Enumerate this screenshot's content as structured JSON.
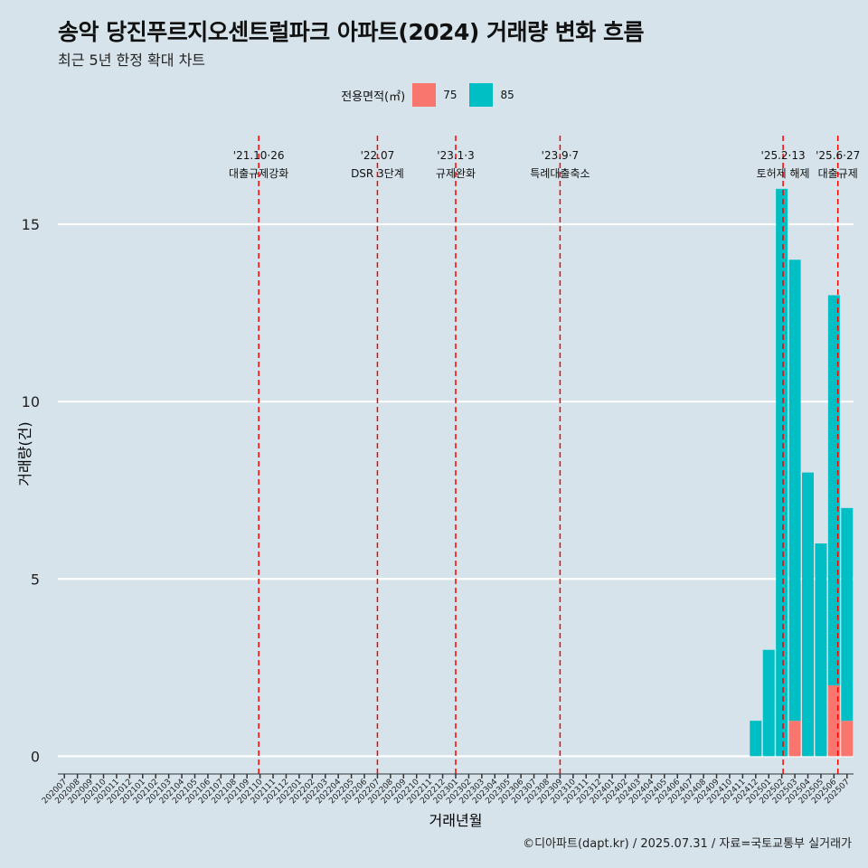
{
  "chart_data": {
    "type": "bar",
    "title": "송악 당진푸르지오센트럴파크 아파트(2024) 거래량 변화 흐름",
    "subtitle": "최근 5년 한정 확대 차트",
    "xlabel": "거래년월",
    "ylabel": "거래량(건)",
    "caption": "©디아파트(dapt.kr) / 2025.07.31 / 자료=국토교통부 실거래가",
    "legend": {
      "title": "전용면적(㎡)",
      "position": "top",
      "items": [
        {
          "label": "75",
          "color": "#f8766d"
        },
        {
          "label": "85",
          "color": "#00bfc4"
        }
      ]
    },
    "ylim": [
      -0.5,
      17.5
    ],
    "yticks": [
      0,
      5,
      10,
      15
    ],
    "grid": true,
    "categories": [
      "202007",
      "202008",
      "202009",
      "202010",
      "202011",
      "202012",
      "202101",
      "202102",
      "202103",
      "202104",
      "202105",
      "202106",
      "202107",
      "202108",
      "202109",
      "202110",
      "202111",
      "202112",
      "202201",
      "202202",
      "202203",
      "202204",
      "202205",
      "202206",
      "202207",
      "202208",
      "202209",
      "202210",
      "202211",
      "202212",
      "202301",
      "202302",
      "202303",
      "202304",
      "202305",
      "202306",
      "202307",
      "202308",
      "202309",
      "202310",
      "202311",
      "202312",
      "202401",
      "202402",
      "202403",
      "202404",
      "202405",
      "202406",
      "202407",
      "202408",
      "202409",
      "202410",
      "202411",
      "202412",
      "202501",
      "202502",
      "202503",
      "202504",
      "202505",
      "202506",
      "202507"
    ],
    "series": [
      {
        "name": "75",
        "color": "#f8766d",
        "values": {
          "202503": 1,
          "202506": 2,
          "202507": 1
        }
      },
      {
        "name": "85",
        "color": "#00bfc4",
        "values": {
          "202412": 1,
          "202501": 3,
          "202502": 16,
          "202503": 13,
          "202504": 8,
          "202505": 6,
          "202506": 11,
          "202507": 6
        }
      }
    ],
    "annotations": [
      {
        "category": "202110",
        "offset": -0.1,
        "date": "'21.10·26",
        "label": "대출규제강화"
      },
      {
        "category": "202207",
        "offset": 0,
        "date": "'22.07",
        "label": "DSR 3단계"
      },
      {
        "category": "202301",
        "offset": 0,
        "date": "'23.1·3",
        "label": "규제완화"
      },
      {
        "category": "202309",
        "offset": 0,
        "date": "'23.9·7",
        "label": "특례대출축소"
      },
      {
        "category": "202502",
        "offset": 0.1,
        "date": "'25.2·13",
        "label": "토허제 해제"
      },
      {
        "category": "202506",
        "offset": 0.3,
        "date": "'25.6·27",
        "label": "대출규제"
      }
    ]
  }
}
